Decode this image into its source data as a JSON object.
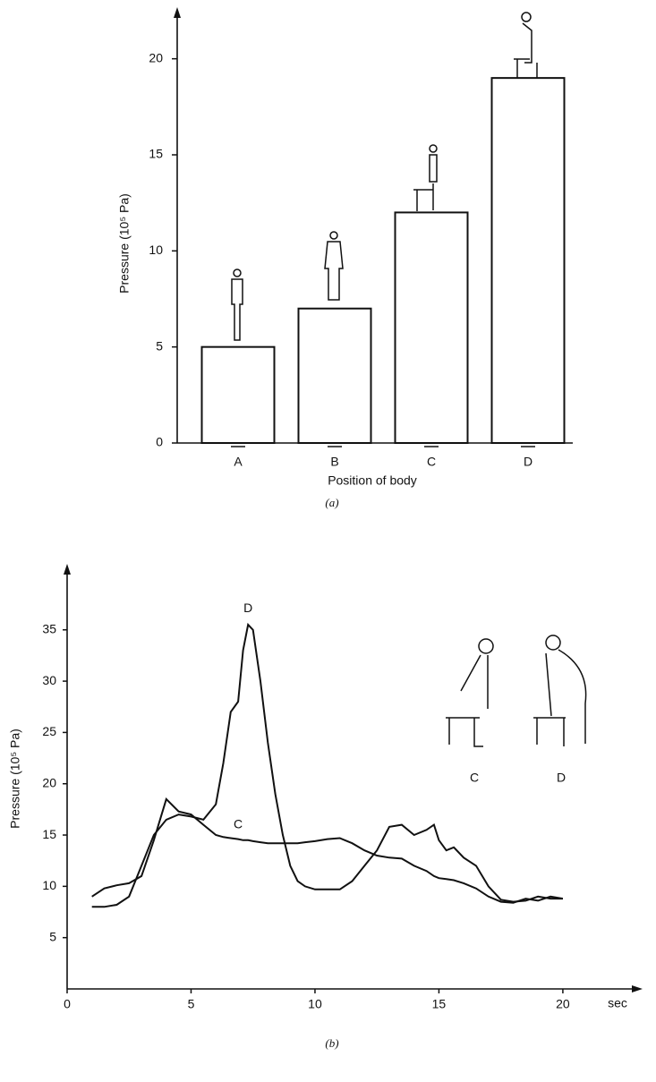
{
  "chart_data": [
    {
      "type": "bar",
      "caption": "(a)",
      "y_label": "Pressure (10⁵ Pa)",
      "x_label": "Position of body",
      "categories": [
        "A",
        "B",
        "C",
        "D"
      ],
      "values": [
        5,
        7,
        12,
        19
      ],
      "color": "#ffffff",
      "ylim": [
        0,
        22.5
      ],
      "yticks": [
        0,
        5,
        10,
        15,
        20
      ],
      "grid": false
    },
    {
      "type": "line",
      "caption": "(b)",
      "y_label": "Pressure (10⁵ Pa)",
      "x_label": "sec",
      "x": [
        1,
        1.5,
        2,
        2.5,
        3,
        3.5,
        4,
        4.5,
        5,
        5.5,
        6,
        6.3,
        6.6,
        6.9,
        7.1,
        7.3,
        7.5,
        7.8,
        8.1,
        8.4,
        8.7,
        9,
        9.3,
        9.6,
        10,
        10.5,
        11,
        11.5,
        12,
        12.5,
        13,
        13.5,
        14,
        14.5,
        14.8,
        15,
        15.3,
        15.6,
        16,
        16.5,
        17,
        17.5,
        18,
        18.5,
        19,
        19.5,
        20
      ],
      "series": [
        {
          "name": "D",
          "color": "#111111",
          "values": [
            8,
            8,
            8.2,
            9,
            12,
            15,
            16.5,
            17,
            16.8,
            16.5,
            18,
            22,
            27,
            28,
            33,
            35.5,
            35,
            30,
            24,
            19,
            15,
            12,
            10.5,
            10,
            9.7,
            9.7,
            9.7,
            10.5,
            12,
            13.5,
            15.8,
            16,
            15,
            15.5,
            16,
            14.5,
            13.5,
            13.8,
            12.8,
            12,
            10,
            8.7,
            8.5,
            8.6,
            9,
            8.8,
            8.8
          ]
        },
        {
          "name": "C",
          "color": "#111111",
          "values": [
            9,
            9.8,
            10.1,
            10.3,
            11,
            14.5,
            18.5,
            17.3,
            17,
            16,
            15,
            14.8,
            14.7,
            14.6,
            14.5,
            14.5,
            14.4,
            14.3,
            14.2,
            14.2,
            14.2,
            14.2,
            14.2,
            14.3,
            14.4,
            14.6,
            14.7,
            14.2,
            13.5,
            13,
            12.8,
            12.7,
            12,
            11.5,
            11,
            10.8,
            10.7,
            10.6,
            10.3,
            9.8,
            9,
            8.5,
            8.4,
            8.8,
            8.6,
            9,
            8.8
          ]
        }
      ],
      "figure_labels": [
        "C",
        "D"
      ],
      "xlim": [
        0,
        23
      ],
      "xticks": [
        0,
        5,
        10,
        15,
        20
      ],
      "ylim": [
        0,
        41
      ],
      "yticks": [
        5,
        10,
        15,
        20,
        25,
        30,
        35
      ],
      "grid": false
    }
  ]
}
